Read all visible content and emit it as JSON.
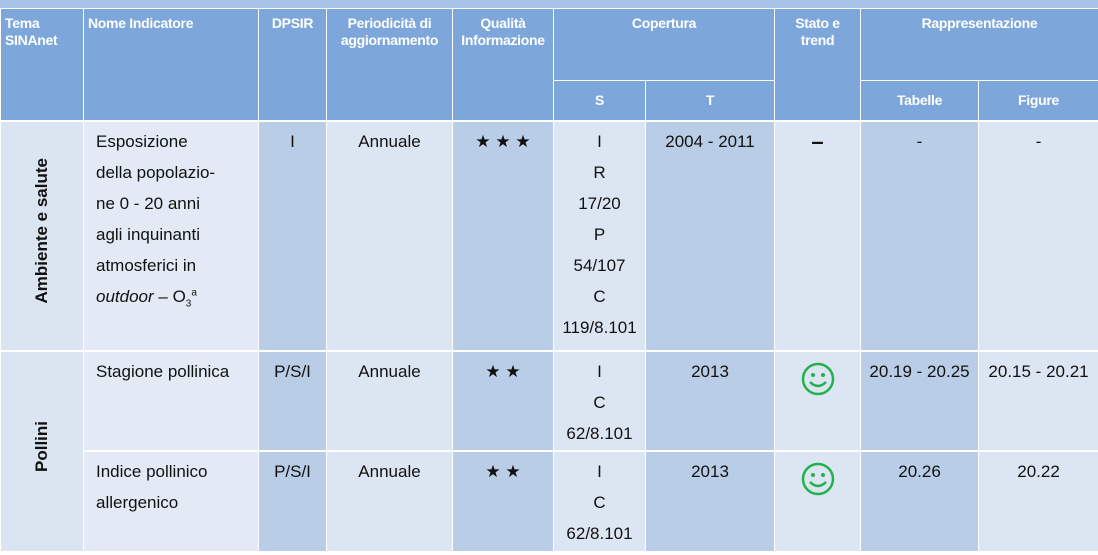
{
  "header": {
    "tema": "Tema SINAnet",
    "nome": "Nome Indicatore",
    "dpsir": "DPSIR",
    "periodicita": "Periodicità di aggiornamento",
    "qualita": "Qualità Informazione",
    "copertura": "Copertura",
    "s": "S",
    "t": "T",
    "stato": "Stato e trend",
    "rappresentazione": "Rappresentazione",
    "tabelle": "Tabelle",
    "figure": "Figure"
  },
  "groups": [
    {
      "tema": "Ambiente e salute"
    },
    {
      "tema": "Pollini"
    }
  ],
  "rows": [
    {
      "name_lines": [
        "Esposizione",
        "della popolazio-",
        "ne 0 - 20 anni",
        "agli inquinanti",
        "atmosferici in"
      ],
      "name_italic": "outdoor",
      "name_tail": " – O",
      "name_sub": "3",
      "name_sup": "a",
      "dpsir": "I",
      "periodicita": "Annuale",
      "qualita": "★ ★ ★",
      "s": [
        "I",
        "R",
        "17/20",
        "P",
        "54/107",
        "C",
        "119/8.101"
      ],
      "t": "2004 - 2011",
      "stato": "–",
      "tabelle": "-",
      "figure": "-"
    },
    {
      "name": "Stagione pollinica",
      "dpsir": "P/S/I",
      "periodicita": "Annuale",
      "qualita": "★ ★",
      "s": [
        "I",
        "C",
        "62/8.101"
      ],
      "t": "2013",
      "tabelle": "20.19 - 20.25",
      "figure": "20.15 - 20.21"
    },
    {
      "name": "Indice pollinico allergenico",
      "dpsir": "P/S/I",
      "periodicita": "Annuale",
      "qualita": "★ ★",
      "s": [
        "I",
        "C",
        "62/8.101"
      ],
      "t": "2013",
      "tabelle": "20.26",
      "figure": "20.22"
    }
  ]
}
